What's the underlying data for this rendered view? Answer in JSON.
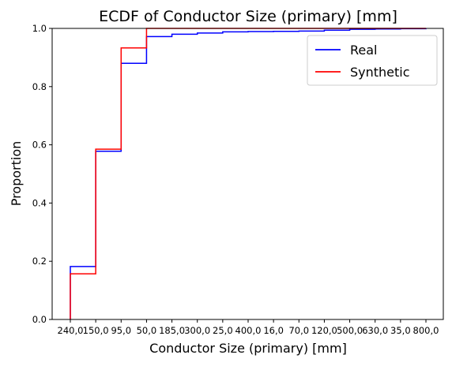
{
  "chart_data": {
    "type": "line",
    "title": "ECDF of Conductor Size (primary) [mm]",
    "xlabel": "Conductor Size (primary) [mm]",
    "ylabel": "Proportion",
    "categories": [
      "240,0",
      "150,0",
      "95,0",
      "50,0",
      "185,0",
      "300,0",
      "25,0",
      "400,0",
      "16,0",
      "70,0",
      "120,0",
      "500,0",
      "630,0",
      "35,0",
      "800,0"
    ],
    "ylim": [
      0,
      1.0
    ],
    "yticks": [
      "0.0",
      "0.2",
      "0.4",
      "0.6",
      "0.8",
      "1.0"
    ],
    "ytick_values": [
      0,
      0.2,
      0.4,
      0.6,
      0.8,
      1.0
    ],
    "legend_position": "top-right",
    "grid": false,
    "series": [
      {
        "name": "Real",
        "color": "#0000ff",
        "values": [
          0.182,
          0.578,
          0.88,
          0.972,
          0.98,
          0.984,
          0.988,
          0.989,
          0.99,
          0.991,
          0.994,
          0.997,
          0.998,
          0.999,
          1.0
        ]
      },
      {
        "name": "Synthetic",
        "color": "#ff0000",
        "values": [
          0.157,
          0.585,
          0.933,
          1.0,
          1.0,
          1.0,
          1.0,
          1.0,
          1.0,
          1.0,
          1.0,
          1.0,
          1.0,
          1.0,
          1.0
        ]
      }
    ]
  }
}
